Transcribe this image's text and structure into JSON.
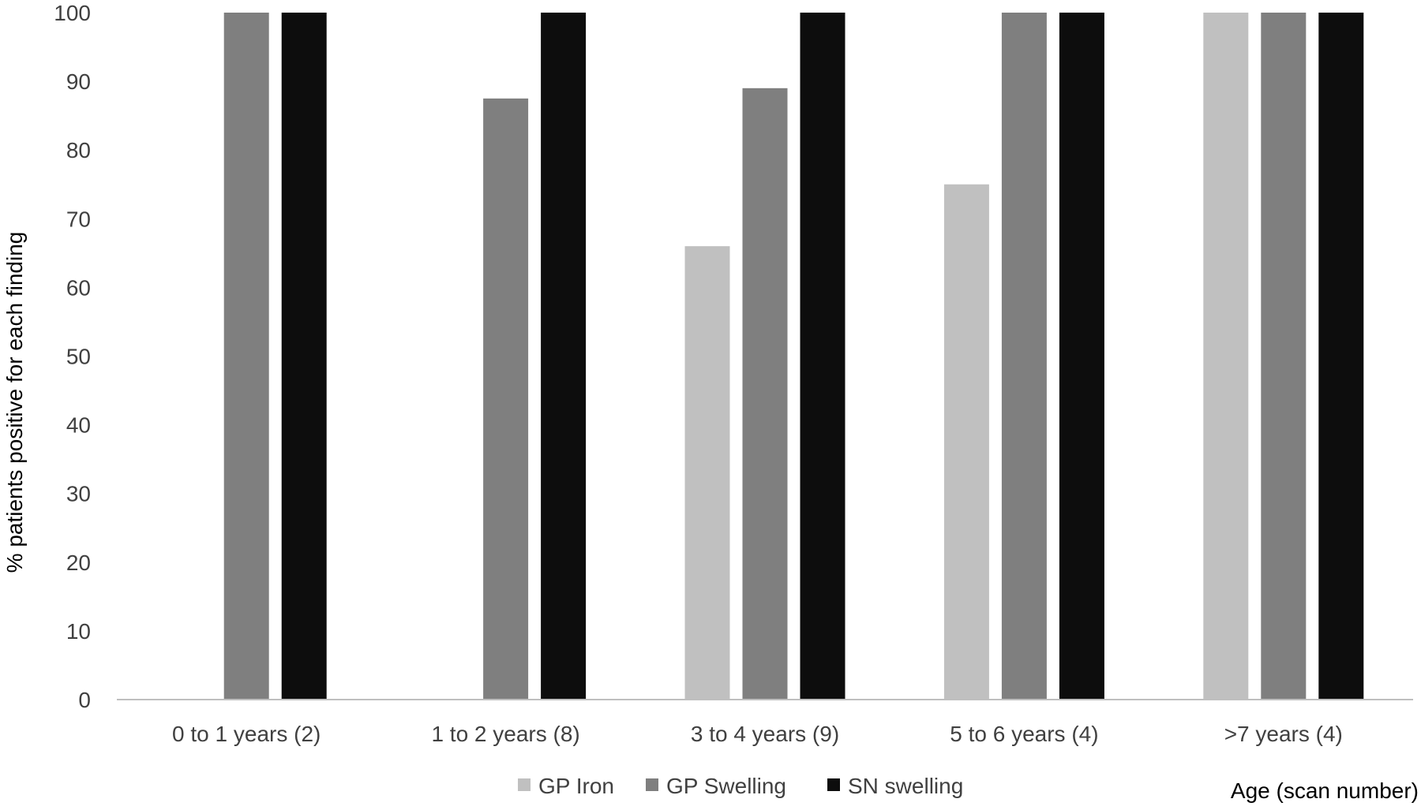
{
  "chart_data": {
    "type": "bar",
    "title": "",
    "xlabel": "Age (scan number)",
    "ylabel": "% patients positive for each finding",
    "ylim": [
      0,
      100
    ],
    "yticks": [
      0,
      10,
      20,
      30,
      40,
      50,
      60,
      70,
      80,
      90,
      100
    ],
    "categories": [
      "0 to 1 years (2)",
      "1 to 2 years (8)",
      "3 to 4 years (9)",
      "5 to 6 years (4)",
      ">7 years (4)"
    ],
    "series": [
      {
        "name": "GP Iron",
        "color": "#c0c0c0",
        "values": [
          0,
          0,
          66,
          75,
          100
        ]
      },
      {
        "name": "GP Swelling",
        "color": "#7f7f7f",
        "values": [
          100,
          87.5,
          89,
          100,
          100
        ]
      },
      {
        "name": "SN swelling",
        "color": "#0d0d0d",
        "values": [
          100,
          100,
          100,
          100,
          100
        ]
      }
    ],
    "grid": false,
    "legend_position": "bottom"
  }
}
